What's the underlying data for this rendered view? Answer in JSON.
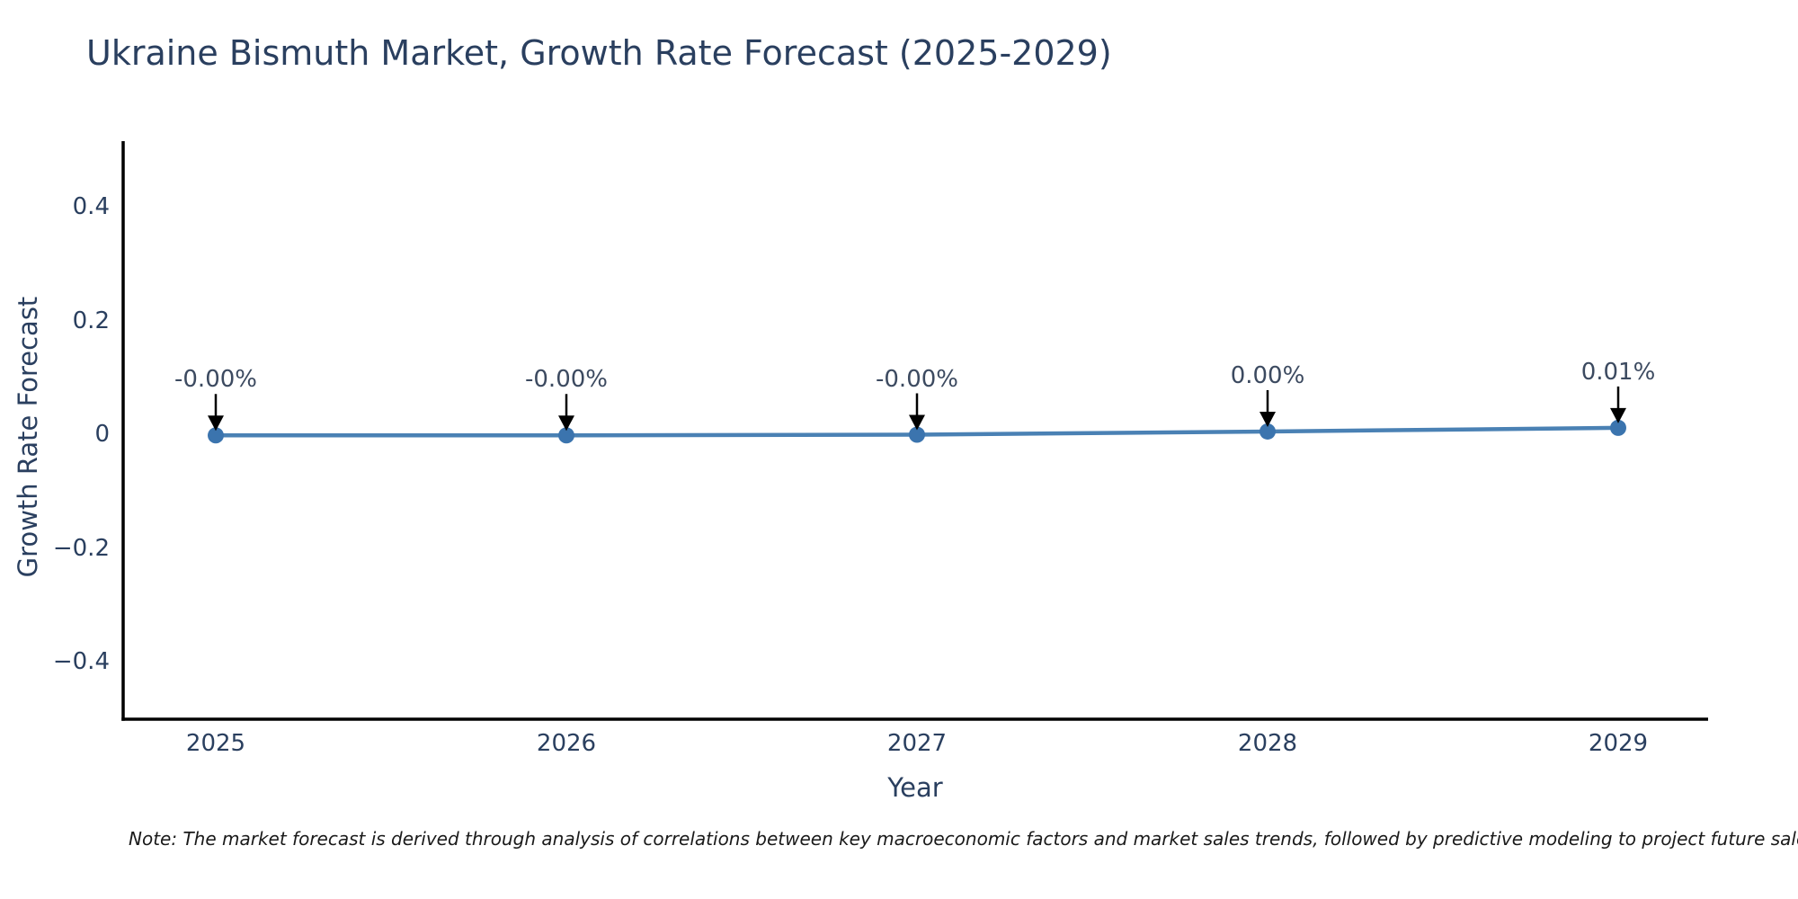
{
  "page": {
    "note": "Note: The market forecast is derived through analysis of correlations between key macroeconomic factors and market sales trends, followed by predictive modeling to project future sales."
  },
  "chart_data": {
    "type": "line",
    "title": "Ukraine Bismuth Market, Growth Rate Forecast (2025-2029)",
    "xlabel": "Year",
    "ylabel": "Growth Rate Forecast",
    "x": [
      2025,
      2026,
      2027,
      2028,
      2029
    ],
    "series": [
      {
        "name": "Growth Rate Forecast",
        "values_pct": [
          -0.002,
          -0.002,
          -0.0008,
          0.0048,
          0.0112
        ],
        "point_labels": [
          "-0.00%",
          "-0.00%",
          "-0.00%",
          "0.00%",
          "0.01%"
        ]
      }
    ],
    "ylim": [
      -0.5,
      0.51
    ],
    "yticks": [
      0.4,
      0.2,
      0,
      -0.2,
      -0.4
    ],
    "ytick_labels": [
      "0.4",
      "0.2",
      "0",
      "−0.2",
      "−0.4"
    ],
    "grid": false,
    "legend": false,
    "annotation_arrows": true,
    "colors": {
      "line": "#4a81b4",
      "marker": "#3b74ae",
      "axis": "#000000",
      "arrow": "#000000",
      "text": "#2a3f5f",
      "annotation_text": "#3c4a60",
      "note": "#1a1a1a",
      "background": "#ffffff"
    }
  }
}
